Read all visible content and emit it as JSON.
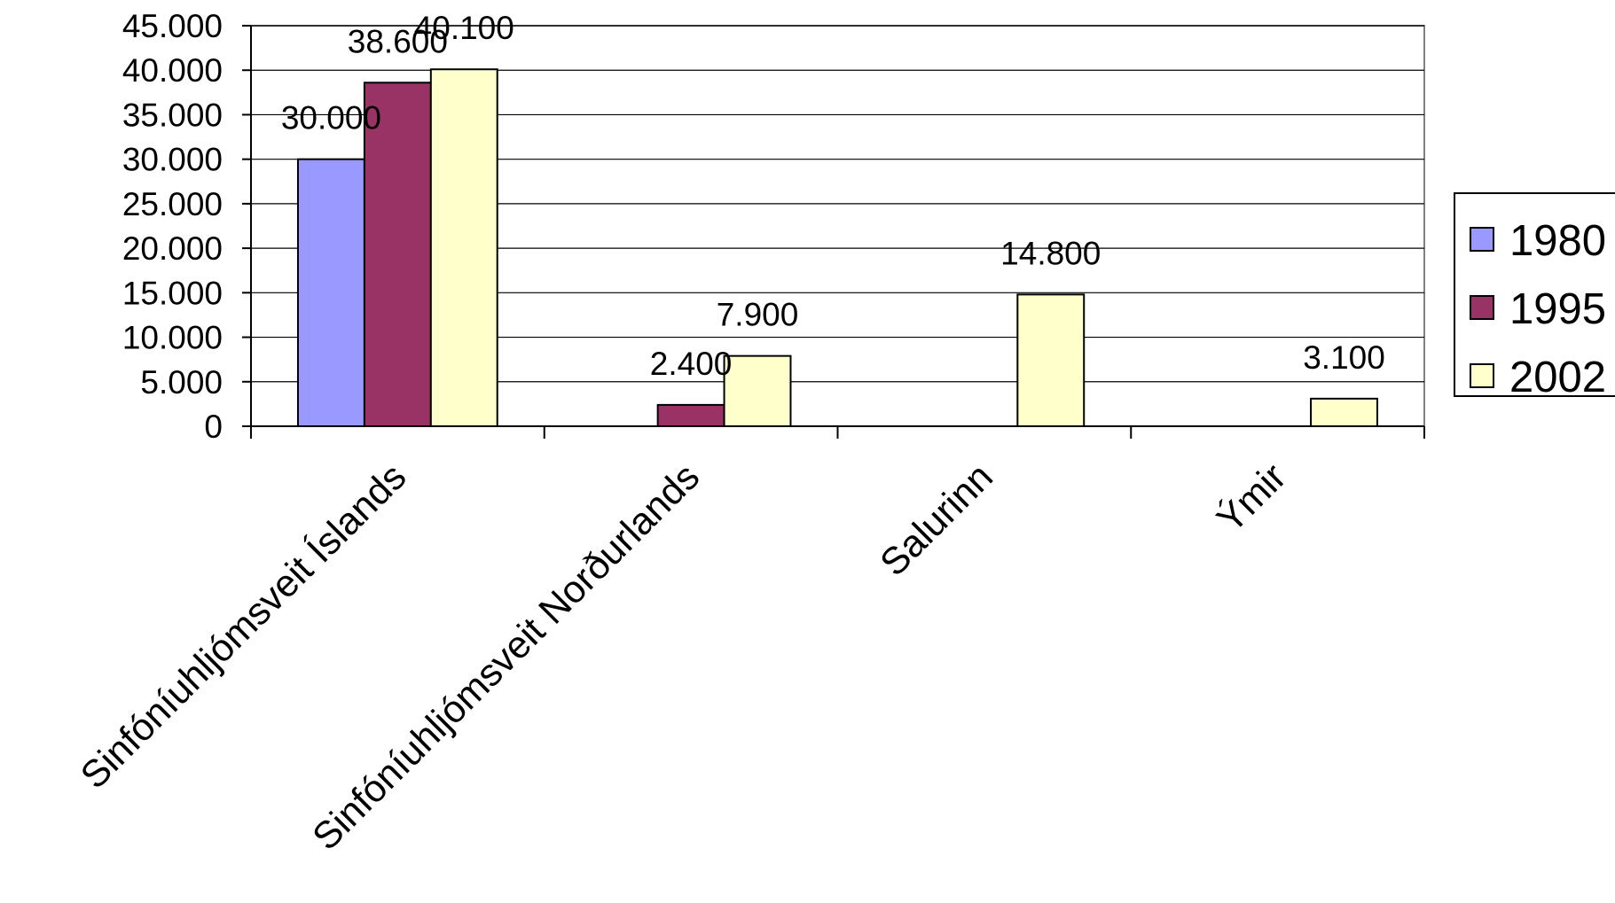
{
  "chart_data": {
    "type": "bar",
    "title": "",
    "xlabel": "",
    "ylabel": "",
    "categories": [
      "Sinfóníuhljómsveit Íslands",
      "Sinfóníuhljómsveit Norðurlands",
      "Salurinn",
      "Ýmir"
    ],
    "category_labels_shown": [
      "Sinfóníuhljómsveit Íslands",
      "Sinfóníuhljómsveit Norðurlands",
      "Salurinn",
      "Ýmir"
    ],
    "series": [
      {
        "name": "1980",
        "color": "#9999ff",
        "values": [
          30000,
          null,
          null,
          null
        ],
        "labels": [
          "30.000",
          null,
          null,
          null
        ]
      },
      {
        "name": "1995",
        "color": "#993366",
        "values": [
          38600,
          2400,
          null,
          null
        ],
        "labels": [
          "38.600",
          "2.400",
          null,
          null
        ]
      },
      {
        "name": "2002",
        "color": "#ffffcc",
        "values": [
          40100,
          7900,
          14800,
          3100
        ],
        "labels": [
          "40.100",
          "7.900",
          "14.800",
          "3.100"
        ]
      }
    ],
    "ylim": [
      0,
      45000
    ],
    "yticks": [
      0,
      5000,
      10000,
      15000,
      20000,
      25000,
      30000,
      35000,
      40000,
      45000
    ],
    "ytick_labels": [
      "0",
      "5.000",
      "10.000",
      "15.000",
      "20.000",
      "25.000",
      "30.000",
      "35.000",
      "40.000",
      "45.000"
    ],
    "grid": true,
    "legend": "right"
  }
}
